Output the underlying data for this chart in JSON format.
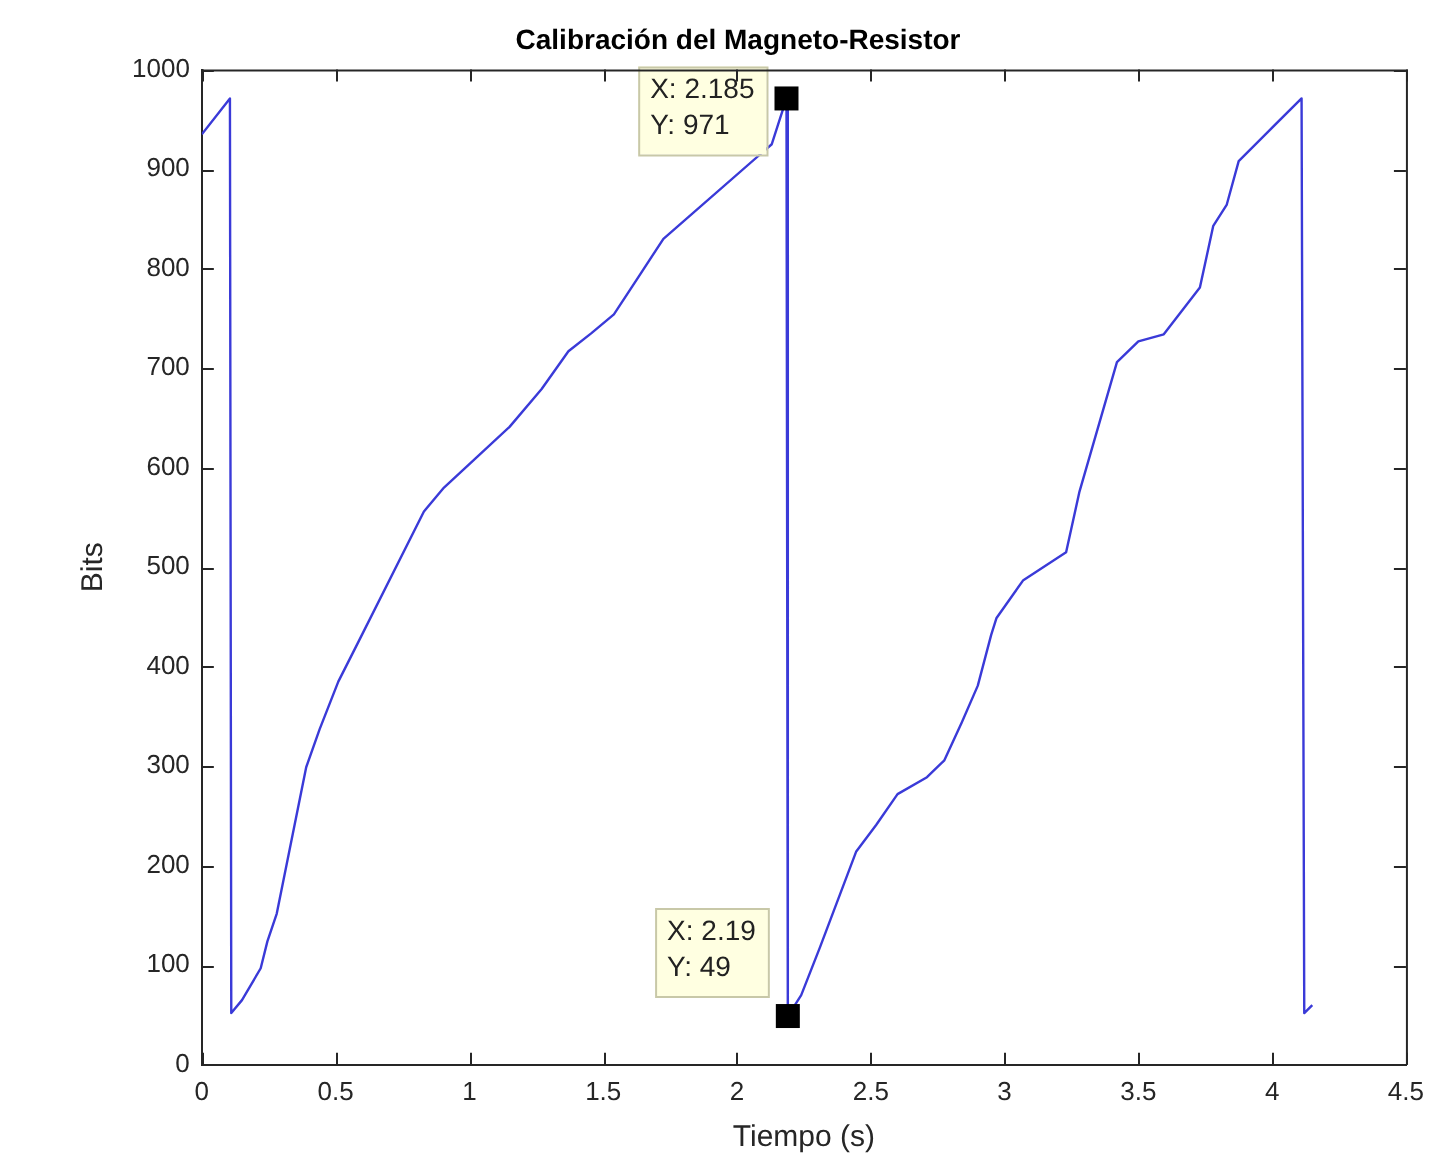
{
  "chart_data": {
    "type": "line",
    "title": "Calibración del Magneto-Resistor",
    "xlabel": "Tiempo (s)",
    "ylabel": "Bits",
    "xlim": [
      0,
      4.5
    ],
    "xticks": [
      0,
      0.5,
      1,
      1.5,
      2,
      2.5,
      3,
      3.5,
      4,
      4.5
    ],
    "ylim": [
      0,
      1000
    ],
    "yticks": [
      0,
      100,
      200,
      300,
      400,
      500,
      600,
      700,
      800,
      900,
      1000
    ],
    "grid": false,
    "legend": false,
    "marker": "none",
    "line_style": "solid",
    "annotations": [
      {
        "text": "X: 2.185\nY: 971",
        "x": 2.185,
        "y": 971
      },
      {
        "text": "X: 2.19\nY: 49",
        "x": 2.19,
        "y": 49
      }
    ],
    "series": [
      {
        "color": "#3a3ad8",
        "x": [
          0,
          0.105,
          0.11,
          0.15,
          0.22,
          0.245,
          0.28,
          0.39,
          0.44,
          0.51,
          0.587,
          0.83,
          0.905,
          1.03,
          1.15,
          1.27,
          1.37,
          1.455,
          1.54,
          1.64,
          1.725,
          2.13,
          2.185,
          2.19,
          2.24,
          2.31,
          2.445,
          2.52,
          2.6,
          2.71,
          2.775,
          2.84,
          2.9,
          2.95,
          2.97,
          3.07,
          3.23,
          3.28,
          3.42,
          3.5,
          3.595,
          3.73,
          3.78,
          3.83,
          3.875,
          3.99,
          4.11,
          4.12,
          4.15
        ],
        "values": [
          935,
          971,
          52,
          65,
          97,
          124,
          152,
          299,
          337,
          385,
          426,
          556,
          580,
          611,
          641,
          679,
          717,
          735,
          754,
          795,
          830,
          925,
          971,
          49,
          70,
          118,
          214,
          241,
          272,
          289,
          306,
          344,
          381,
          432,
          449,
          487,
          515,
          576,
          706,
          727,
          734,
          781,
          843,
          864,
          908,
          939,
          971,
          52,
          60
        ]
      }
    ]
  }
}
